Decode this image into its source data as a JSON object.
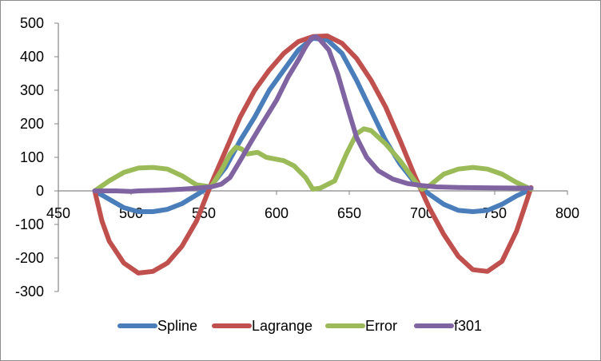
{
  "chart_data": {
    "type": "line",
    "title": "",
    "xlabel": "",
    "ylabel": "",
    "xlim": [
      450,
      800
    ],
    "ylim": [
      -300,
      500
    ],
    "x_ticks": [
      450,
      500,
      550,
      600,
      650,
      700,
      750,
      800
    ],
    "y_ticks": [
      -300,
      -200,
      -100,
      0,
      100,
      200,
      300,
      400,
      500
    ],
    "grid": false,
    "legend_position": "bottom",
    "series": [
      {
        "name": "Spline",
        "color": "#4a7ebb",
        "points": [
          [
            475,
            0
          ],
          [
            485,
            -25
          ],
          [
            495,
            -50
          ],
          [
            505,
            -62
          ],
          [
            515,
            -62
          ],
          [
            525,
            -55
          ],
          [
            535,
            -38
          ],
          [
            545,
            -12
          ],
          [
            555,
            15
          ],
          [
            565,
            70
          ],
          [
            575,
            150
          ],
          [
            585,
            220
          ],
          [
            595,
            300
          ],
          [
            605,
            360
          ],
          [
            615,
            420
          ],
          [
            625,
            455
          ],
          [
            635,
            450
          ],
          [
            645,
            410
          ],
          [
            655,
            330
          ],
          [
            665,
            240
          ],
          [
            675,
            150
          ],
          [
            685,
            80
          ],
          [
            695,
            25
          ],
          [
            705,
            -10
          ],
          [
            715,
            -40
          ],
          [
            725,
            -58
          ],
          [
            735,
            -62
          ],
          [
            745,
            -58
          ],
          [
            755,
            -40
          ],
          [
            765,
            -15
          ],
          [
            775,
            5
          ]
        ]
      },
      {
        "name": "Lagrange",
        "color": "#c0504d",
        "points": [
          [
            475,
            0
          ],
          [
            480,
            -90
          ],
          [
            485,
            -150
          ],
          [
            495,
            -215
          ],
          [
            505,
            -245
          ],
          [
            515,
            -240
          ],
          [
            525,
            -215
          ],
          [
            535,
            -165
          ],
          [
            545,
            -90
          ],
          [
            555,
            20
          ],
          [
            565,
            120
          ],
          [
            575,
            220
          ],
          [
            585,
            300
          ],
          [
            595,
            360
          ],
          [
            605,
            410
          ],
          [
            615,
            445
          ],
          [
            625,
            460
          ],
          [
            635,
            462
          ],
          [
            645,
            440
          ],
          [
            655,
            395
          ],
          [
            665,
            330
          ],
          [
            675,
            250
          ],
          [
            685,
            150
          ],
          [
            695,
            45
          ],
          [
            705,
            -50
          ],
          [
            715,
            -130
          ],
          [
            725,
            -195
          ],
          [
            735,
            -235
          ],
          [
            745,
            -240
          ],
          [
            755,
            -210
          ],
          [
            765,
            -120
          ],
          [
            772,
            -30
          ],
          [
            775,
            10
          ]
        ]
      },
      {
        "name": "Error",
        "color": "#9bbb59",
        "points": [
          [
            475,
            0
          ],
          [
            485,
            30
          ],
          [
            495,
            55
          ],
          [
            505,
            68
          ],
          [
            515,
            70
          ],
          [
            525,
            65
          ],
          [
            535,
            45
          ],
          [
            545,
            18
          ],
          [
            555,
            12
          ],
          [
            562,
            60
          ],
          [
            568,
            110
          ],
          [
            572,
            130
          ],
          [
            576,
            125
          ],
          [
            580,
            110
          ],
          [
            587,
            115
          ],
          [
            593,
            100
          ],
          [
            605,
            90
          ],
          [
            612,
            75
          ],
          [
            620,
            40
          ],
          [
            625,
            5
          ],
          [
            630,
            8
          ],
          [
            640,
            30
          ],
          [
            648,
            110
          ],
          [
            655,
            170
          ],
          [
            660,
            185
          ],
          [
            665,
            180
          ],
          [
            675,
            140
          ],
          [
            685,
            90
          ],
          [
            695,
            30
          ],
          [
            700,
            5
          ],
          [
            705,
            15
          ],
          [
            715,
            50
          ],
          [
            725,
            65
          ],
          [
            735,
            70
          ],
          [
            745,
            65
          ],
          [
            755,
            50
          ],
          [
            765,
            25
          ],
          [
            775,
            5
          ]
        ]
      },
      {
        "name": "f301",
        "color": "#8064a2",
        "points": [
          [
            475,
            0
          ],
          [
            490,
            0
          ],
          [
            500,
            -2
          ],
          [
            505,
            0
          ],
          [
            520,
            2
          ],
          [
            535,
            5
          ],
          [
            545,
            8
          ],
          [
            555,
            12
          ],
          [
            562,
            20
          ],
          [
            568,
            40
          ],
          [
            575,
            90
          ],
          [
            583,
            150
          ],
          [
            590,
            200
          ],
          [
            600,
            270
          ],
          [
            608,
            340
          ],
          [
            615,
            390
          ],
          [
            620,
            430
          ],
          [
            624,
            455
          ],
          [
            627,
            460
          ],
          [
            630,
            450
          ],
          [
            636,
            420
          ],
          [
            642,
            350
          ],
          [
            648,
            260
          ],
          [
            655,
            160
          ],
          [
            662,
            100
          ],
          [
            670,
            60
          ],
          [
            680,
            35
          ],
          [
            690,
            22
          ],
          [
            700,
            16
          ],
          [
            710,
            12
          ],
          [
            725,
            10
          ],
          [
            750,
            9
          ],
          [
            775,
            8
          ]
        ]
      }
    ]
  }
}
